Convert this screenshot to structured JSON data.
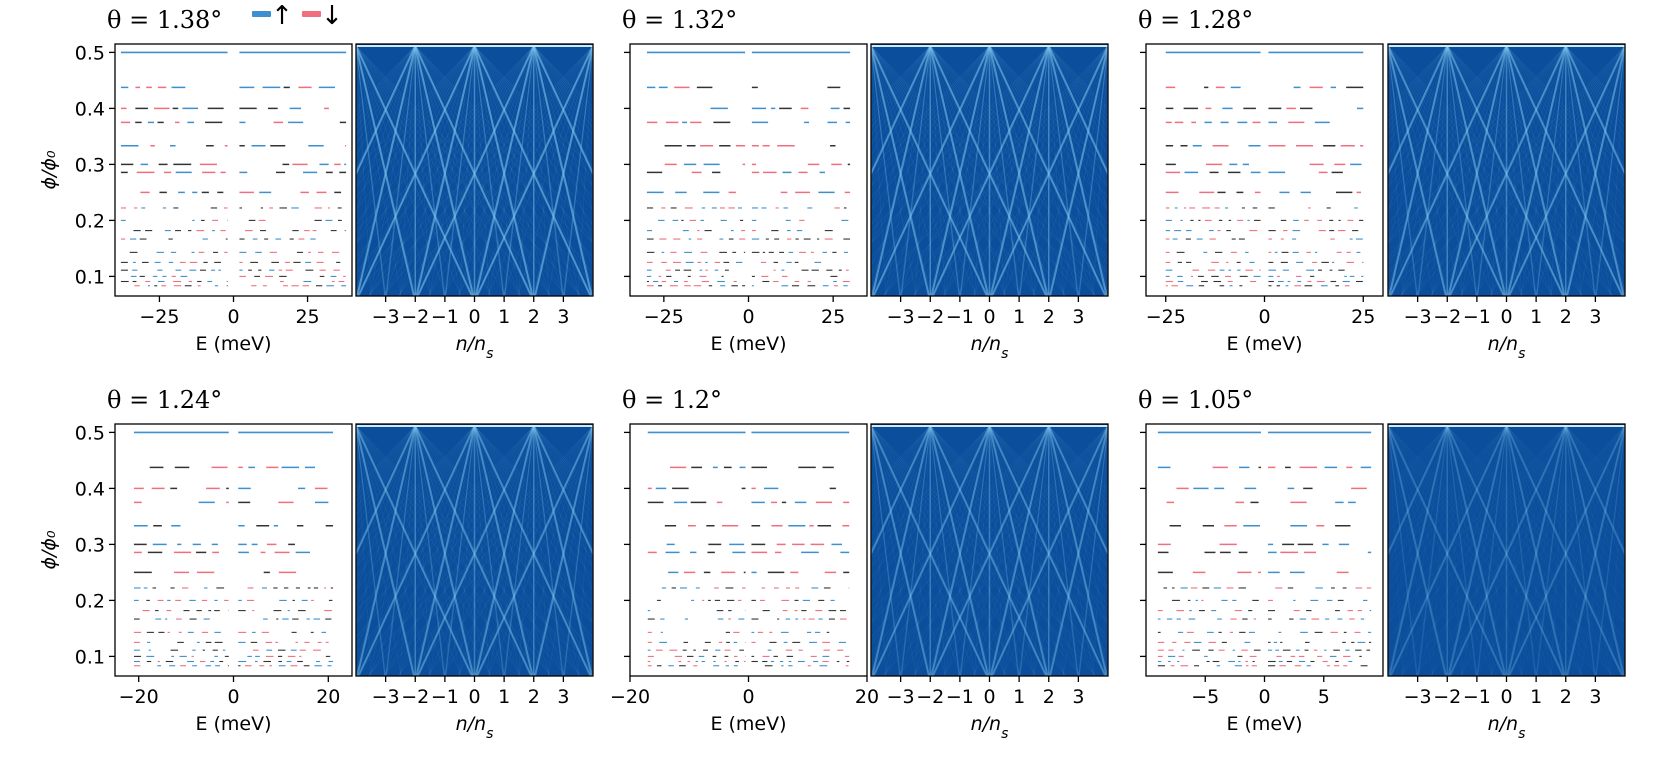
{
  "legend": {
    "entries": [
      {
        "label": "↑",
        "color": "#3d8fcf"
      },
      {
        "label": "↓",
        "color": "#ef6f7f"
      }
    ]
  },
  "colors": {
    "spin_up": "#3d8fcf",
    "spin_down": "#ef6f7f",
    "level_dark": "#333333",
    "heatmap_bg": "#0b4f9c",
    "heatmap_line": "#7fc4ef"
  },
  "chart_data": [
    {
      "type": "scatter",
      "title": "θ = 1.38°",
      "xlabel": "E (meV)",
      "ylabel": "ϕ/ϕ₀",
      "xlim": [
        -40,
        40
      ],
      "ylim": [
        0.065,
        0.515
      ],
      "xticks": [
        -25,
        0,
        25
      ],
      "yticks": [
        0.1,
        0.2,
        0.3,
        0.4,
        0.5
      ],
      "bands": [
        [
          -38,
          -2
        ],
        [
          2,
          38
        ]
      ],
      "fluxes": [
        0.5,
        0.4375,
        0.4,
        0.375,
        0.3333,
        0.3,
        0.2857,
        0.25,
        0.2222,
        0.2,
        0.1818,
        0.1667,
        0.1429,
        0.125,
        0.1111,
        0.1,
        0.0909,
        0.0833
      ]
    },
    {
      "type": "heatmap",
      "xlabel": "n/n_s",
      "xlim": [
        -4,
        4
      ],
      "ylim": [
        0.065,
        0.515
      ],
      "xticks": [
        -3,
        -2,
        -1,
        0,
        1,
        2,
        3
      ],
      "fans": [
        -4,
        -2,
        0,
        2,
        4
      ],
      "intensity": 0.9
    },
    {
      "type": "scatter",
      "title": "θ = 1.32°",
      "xlabel": "E (meV)",
      "ylabel": "",
      "xlim": [
        -35,
        35
      ],
      "ylim": [
        0.065,
        0.515
      ],
      "xticks": [
        -25,
        0,
        25
      ],
      "yticks": [
        0.1,
        0.2,
        0.3,
        0.4,
        0.5
      ],
      "bands": [
        [
          -30,
          -1
        ],
        [
          1,
          30
        ]
      ],
      "fluxes": [
        0.5,
        0.4375,
        0.4,
        0.375,
        0.3333,
        0.3,
        0.2857,
        0.25,
        0.2222,
        0.2,
        0.1818,
        0.1667,
        0.1429,
        0.125,
        0.1111,
        0.1,
        0.0909,
        0.0833
      ]
    },
    {
      "type": "heatmap",
      "xlabel": "n/n_s",
      "xlim": [
        -4,
        4
      ],
      "ylim": [
        0.065,
        0.515
      ],
      "xticks": [
        -3,
        -2,
        -1,
        0,
        1,
        2,
        3
      ],
      "fans": [
        -4,
        -2,
        0,
        2,
        4
      ],
      "intensity": 0.85
    },
    {
      "type": "scatter",
      "title": "θ = 1.28°",
      "xlabel": "E (meV)",
      "ylabel": "",
      "xlim": [
        -30,
        30
      ],
      "ylim": [
        0.065,
        0.515
      ],
      "xticks": [
        -25,
        0,
        25
      ],
      "yticks": [
        0.1,
        0.2,
        0.3,
        0.4,
        0.5
      ],
      "bands": [
        [
          -25,
          -1
        ],
        [
          1,
          25
        ]
      ],
      "fluxes": [
        0.5,
        0.4375,
        0.4,
        0.375,
        0.3333,
        0.3,
        0.2857,
        0.25,
        0.2222,
        0.2,
        0.1818,
        0.1667,
        0.1429,
        0.125,
        0.1111,
        0.1,
        0.0909,
        0.0833
      ]
    },
    {
      "type": "heatmap",
      "xlabel": "n/n_s",
      "xlim": [
        -4,
        4
      ],
      "ylim": [
        0.065,
        0.515
      ],
      "xticks": [
        -3,
        -2,
        -1,
        0,
        1,
        2,
        3
      ],
      "fans": [
        -4,
        -2,
        0,
        2,
        4
      ],
      "intensity": 0.8
    },
    {
      "type": "scatter",
      "title": "θ = 1.24°",
      "xlabel": "E (meV)",
      "ylabel": "ϕ/ϕ₀",
      "xlim": [
        -25,
        25
      ],
      "ylim": [
        0.065,
        0.515
      ],
      "xticks": [
        -20,
        0,
        20
      ],
      "yticks": [
        0.1,
        0.2,
        0.3,
        0.4,
        0.5
      ],
      "bands": [
        [
          -21,
          -1
        ],
        [
          1,
          21
        ]
      ],
      "fluxes": [
        0.5,
        0.4375,
        0.4,
        0.375,
        0.3333,
        0.3,
        0.2857,
        0.25,
        0.2222,
        0.2,
        0.1818,
        0.1667,
        0.1429,
        0.125,
        0.1111,
        0.1,
        0.0909,
        0.0833
      ]
    },
    {
      "type": "heatmap",
      "xlabel": "n/n_s",
      "xlim": [
        -4,
        4
      ],
      "ylim": [
        0.065,
        0.515
      ],
      "xticks": [
        -3,
        -2,
        -1,
        0,
        1,
        2,
        3
      ],
      "fans": [
        -4,
        -2,
        0,
        2,
        4
      ],
      "intensity": 0.75
    },
    {
      "type": "scatter",
      "title": "θ = 1.2°",
      "xlabel": "E (meV)",
      "ylabel": "",
      "xlim": [
        -20,
        20
      ],
      "ylim": [
        0.065,
        0.515
      ],
      "xticks": [
        -20,
        0,
        20
      ],
      "yticks": [
        0.1,
        0.2,
        0.3,
        0.4,
        0.5
      ],
      "bands": [
        [
          -17,
          -0.5
        ],
        [
          0.5,
          17
        ]
      ],
      "fluxes": [
        0.5,
        0.4375,
        0.4,
        0.375,
        0.3333,
        0.3,
        0.2857,
        0.25,
        0.2222,
        0.2,
        0.1818,
        0.1667,
        0.1429,
        0.125,
        0.1111,
        0.1,
        0.0909,
        0.0833
      ]
    },
    {
      "type": "heatmap",
      "xlabel": "n/n_s",
      "xlim": [
        -4,
        4
      ],
      "ylim": [
        0.065,
        0.515
      ],
      "xticks": [
        -3,
        -2,
        -1,
        0,
        1,
        2,
        3
      ],
      "fans": [
        -4,
        -2,
        0,
        2,
        4
      ],
      "intensity": 0.7
    },
    {
      "type": "scatter",
      "title": "θ = 1.05°",
      "xlabel": "E (meV)",
      "ylabel": "",
      "xlim": [
        -10,
        10
      ],
      "ylim": [
        0.065,
        0.515
      ],
      "xticks": [
        -5,
        0,
        5
      ],
      "yticks": [
        0.1,
        0.2,
        0.3,
        0.4,
        0.5
      ],
      "bands": [
        [
          -9,
          -0.3
        ],
        [
          0.3,
          9
        ]
      ],
      "fluxes": [
        0.5,
        0.4375,
        0.4,
        0.375,
        0.3333,
        0.3,
        0.2857,
        0.25,
        0.2222,
        0.2,
        0.1818,
        0.1667,
        0.1429,
        0.125,
        0.1111,
        0.1,
        0.0909,
        0.0833
      ]
    },
    {
      "type": "heatmap",
      "xlabel": "n/n_s",
      "xlim": [
        -4,
        4
      ],
      "ylim": [
        0.065,
        0.515
      ],
      "xticks": [
        -3,
        -2,
        -1,
        0,
        1,
        2,
        3
      ],
      "fans": [
        -4,
        -2,
        0,
        2,
        4
      ],
      "intensity": 0.45
    }
  ]
}
